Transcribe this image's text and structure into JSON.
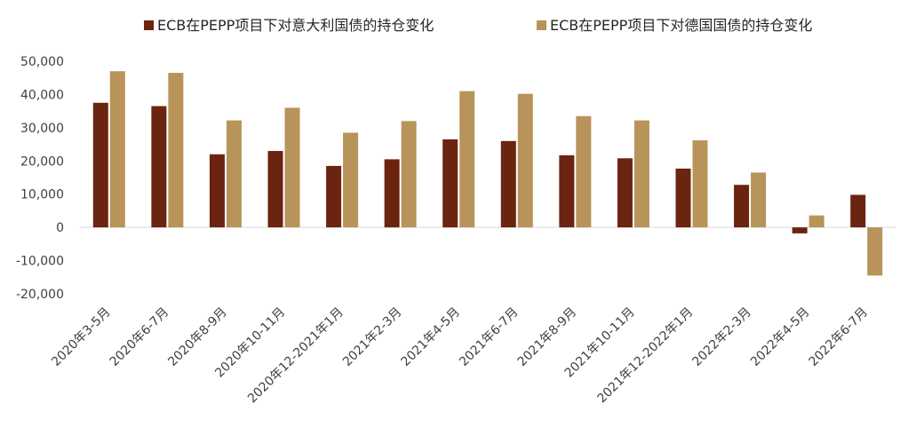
{
  "chart_data": {
    "type": "bar",
    "categories": [
      "2020年3-5月",
      "2020年6-7月",
      "2020年8-9月",
      "2020年10-11月",
      "2020年12-2021年1月",
      "2021年2-3月",
      "2021年4-5月",
      "2021年6-7月",
      "2021年8-9月",
      "2021年10-11月",
      "2021年12-2022年1月",
      "2022年2-3月",
      "2022年4-5月",
      "2022年6-7月"
    ],
    "series": [
      {
        "name": "ECB在PEPP项目下对意大利国债的持仓变化",
        "color": "#6b2410",
        "values": [
          37500,
          36500,
          22000,
          23000,
          18500,
          20500,
          26500,
          26000,
          21700,
          20800,
          17700,
          12800,
          -1800,
          9800
        ]
      },
      {
        "name": "ECB在PEPP项目下对德国国债的持仓变化",
        "color": "#b8935a",
        "values": [
          47000,
          46500,
          32200,
          36000,
          28500,
          32000,
          41000,
          40200,
          33500,
          32200,
          26200,
          16500,
          3600,
          -14500
        ]
      }
    ],
    "y_ticks": [
      "50,000",
      "40,000",
      "30,000",
      "20,000",
      "10,000",
      "0",
      "-10,000",
      "-20,000"
    ],
    "ylim": [
      -20000,
      50000
    ],
    "grid": false,
    "legend_position": "top"
  }
}
